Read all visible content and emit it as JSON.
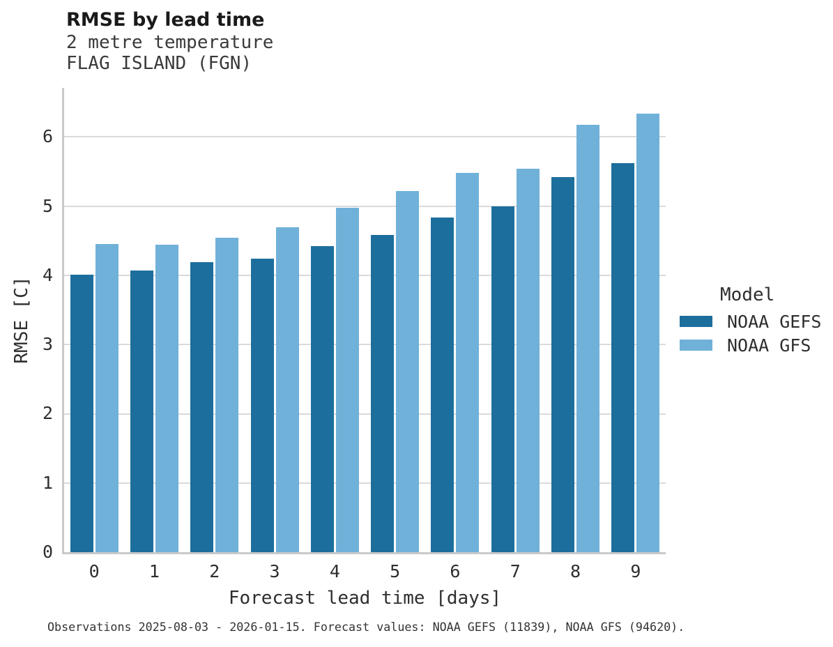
{
  "header": {
    "title": "RMSE by lead time",
    "subtitle_line1": "2 metre temperature",
    "subtitle_line2": "FLAG ISLAND (FGN)"
  },
  "legend": {
    "title": "Model",
    "entries": [
      {
        "label": "NOAA GEFS",
        "color": "#1c6e9d"
      },
      {
        "label": "NOAA GFS",
        "color": "#70b1d9"
      }
    ]
  },
  "footer": {
    "caption": "Observations 2025-08-03 - 2026-01-15. Forecast values: NOAA GEFS (11839), NOAA GFS (94620)."
  },
  "colors": {
    "gefs_dark_blue": "#1c6e9d",
    "gfs_light_blue": "#70b1d9",
    "gridline_gray": "#dadada",
    "axis_spine_gray": "#c9c9c9"
  },
  "chart_data": {
    "type": "bar",
    "title": "RMSE by lead time",
    "subtitle": [
      "2 metre temperature",
      "FLAG ISLAND (FGN)"
    ],
    "xlabel": "Forecast lead time [days]",
    "ylabel": "RMSE [C]",
    "categories": [
      0,
      1,
      2,
      3,
      4,
      5,
      6,
      7,
      8,
      9
    ],
    "series": [
      {
        "name": "NOAA GEFS",
        "color": "#1c6e9d",
        "values": [
          4.01,
          4.07,
          4.19,
          4.24,
          4.42,
          4.58,
          4.84,
          5.0,
          5.42,
          5.62
        ]
      },
      {
        "name": "NOAA GFS",
        "color": "#70b1d9",
        "values": [
          4.45,
          4.44,
          4.54,
          4.7,
          4.98,
          5.22,
          5.48,
          5.54,
          6.18,
          6.34
        ]
      }
    ],
    "yticks": [
      0,
      1,
      2,
      3,
      4,
      5,
      6
    ],
    "ylim": [
      0,
      6.71
    ],
    "grid": "horizontal",
    "legend_position": "right"
  }
}
